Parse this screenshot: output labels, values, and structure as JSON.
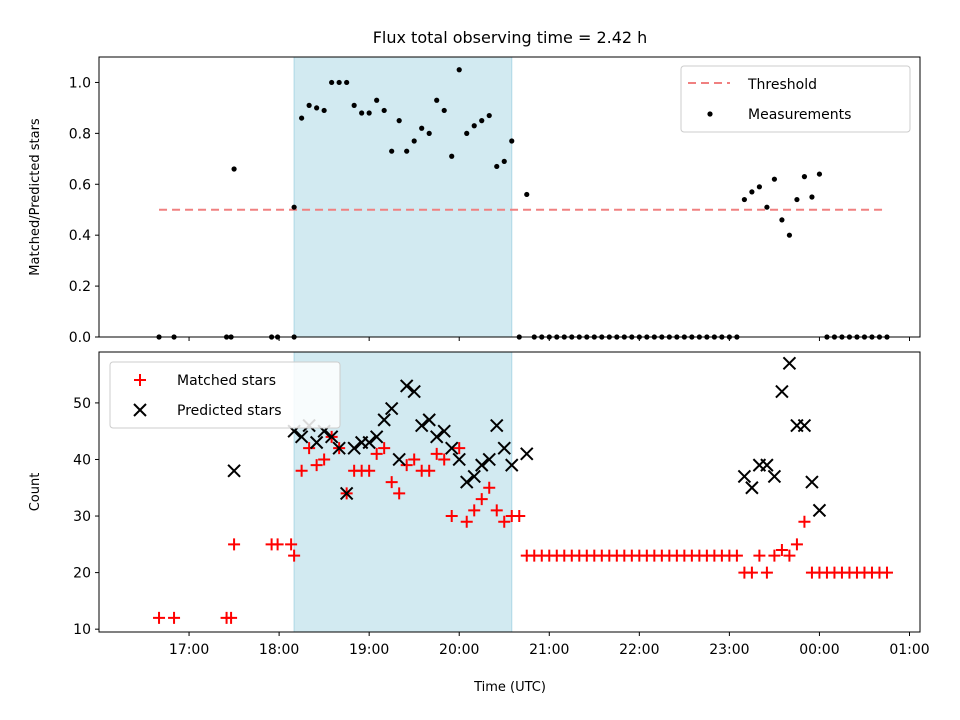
{
  "chart_data": [
    {
      "type": "scatter",
      "title": "Flux total observing time = 2.42 h",
      "ylabel": "Matched/Predicted stars",
      "xlim": [
        "16:00",
        "01:07"
      ],
      "ylim": [
        0,
        1.1
      ],
      "yticks": [
        "0.0",
        "0.2",
        "0.4",
        "0.6",
        "0.8",
        "1.0"
      ],
      "shaded_interval": [
        "18:10",
        "20:35"
      ],
      "shade_color": "#add8e6",
      "threshold": {
        "name": "Threshold",
        "value": 0.5,
        "x_from": "16:40",
        "x_to": "00:45",
        "color": "#f08080"
      },
      "legend": "top-right",
      "series": [
        {
          "name": "Measurements",
          "color": "#000000",
          "marker": "dot",
          "points": [
            [
              "16:40",
              0
            ],
            [
              "16:50",
              0
            ],
            [
              "17:25",
              0
            ],
            [
              "17:28",
              0
            ],
            [
              "17:30",
              0.66
            ],
            [
              "17:55",
              0
            ],
            [
              "17:59",
              0
            ],
            [
              "18:10",
              0
            ],
            [
              "18:10",
              0.51
            ],
            [
              "18:15",
              0.86
            ],
            [
              "18:20",
              0.91
            ],
            [
              "18:25",
              0.9
            ],
            [
              "18:30",
              0.89
            ],
            [
              "18:35",
              1.0
            ],
            [
              "18:40",
              1.0
            ],
            [
              "18:45",
              1.0
            ],
            [
              "18:50",
              0.91
            ],
            [
              "18:55",
              0.88
            ],
            [
              "19:00",
              0.88
            ],
            [
              "19:05",
              0.93
            ],
            [
              "19:10",
              0.89
            ],
            [
              "19:15",
              0.73
            ],
            [
              "19:20",
              0.85
            ],
            [
              "19:25",
              0.73
            ],
            [
              "19:30",
              0.77
            ],
            [
              "19:35",
              0.82
            ],
            [
              "19:40",
              0.8
            ],
            [
              "19:45",
              0.93
            ],
            [
              "19:50",
              0.89
            ],
            [
              "19:55",
              0.71
            ],
            [
              "20:00",
              1.05
            ],
            [
              "20:05",
              0.8
            ],
            [
              "20:10",
              0.83
            ],
            [
              "20:15",
              0.85
            ],
            [
              "20:20",
              0.87
            ],
            [
              "20:25",
              0.67
            ],
            [
              "20:30",
              0.69
            ],
            [
              "20:35",
              0.77
            ],
            [
              "20:40",
              0
            ],
            [
              "20:45",
              0.56
            ],
            [
              "20:50",
              0
            ],
            [
              "20:55",
              0
            ],
            [
              "21:00",
              0
            ],
            [
              "21:05",
              0
            ],
            [
              "21:10",
              0
            ],
            [
              "21:15",
              0
            ],
            [
              "21:20",
              0
            ],
            [
              "21:25",
              0
            ],
            [
              "21:30",
              0
            ],
            [
              "21:35",
              0
            ],
            [
              "21:40",
              0
            ],
            [
              "21:45",
              0
            ],
            [
              "21:50",
              0
            ],
            [
              "21:55",
              0
            ],
            [
              "22:00",
              0
            ],
            [
              "22:05",
              0
            ],
            [
              "22:10",
              0
            ],
            [
              "22:15",
              0
            ],
            [
              "22:20",
              0
            ],
            [
              "22:25",
              0
            ],
            [
              "22:30",
              0
            ],
            [
              "22:35",
              0
            ],
            [
              "22:40",
              0
            ],
            [
              "22:45",
              0
            ],
            [
              "22:50",
              0
            ],
            [
              "22:55",
              0
            ],
            [
              "23:00",
              0
            ],
            [
              "23:05",
              0
            ],
            [
              "23:10",
              0.54
            ],
            [
              "23:15",
              0.57
            ],
            [
              "23:20",
              0.59
            ],
            [
              "23:25",
              0.51
            ],
            [
              "23:30",
              0.62
            ],
            [
              "23:35",
              0.46
            ],
            [
              "23:40",
              0.4
            ],
            [
              "23:45",
              0.54
            ],
            [
              "23:50",
              0.63
            ],
            [
              "23:55",
              0.55
            ],
            [
              "00:00",
              0.64
            ],
            [
              "00:05",
              0
            ],
            [
              "00:10",
              0
            ],
            [
              "00:15",
              0
            ],
            [
              "00:20",
              0
            ],
            [
              "00:25",
              0
            ],
            [
              "00:30",
              0
            ],
            [
              "00:35",
              0
            ],
            [
              "00:40",
              0
            ],
            [
              "00:45",
              0
            ]
          ]
        }
      ]
    },
    {
      "type": "scatter",
      "xlabel": "Time (UTC)",
      "ylabel": "Count",
      "xlim": [
        "16:00",
        "01:07"
      ],
      "ylim": [
        9.5,
        59
      ],
      "yticks": [
        "10",
        "20",
        "30",
        "40",
        "50"
      ],
      "xticks": [
        "17:00",
        "18:00",
        "19:00",
        "20:00",
        "21:00",
        "22:00",
        "23:00",
        "00:00",
        "01:00"
      ],
      "shaded_interval": [
        "18:10",
        "20:35"
      ],
      "shade_color": "#add8e6",
      "legend": "top-left",
      "series": [
        {
          "name": "Matched stars",
          "color": "#ff0000",
          "marker": "plus",
          "points": [
            [
              "16:40",
              12
            ],
            [
              "16:50",
              12
            ],
            [
              "17:25",
              12
            ],
            [
              "17:28",
              12
            ],
            [
              "17:30",
              25
            ],
            [
              "17:55",
              25
            ],
            [
              "17:59",
              25
            ],
            [
              "18:08",
              25
            ],
            [
              "18:10",
              23
            ],
            [
              "18:15",
              38
            ],
            [
              "18:20",
              42
            ],
            [
              "18:25",
              39
            ],
            [
              "18:30",
              40
            ],
            [
              "18:35",
              44
            ],
            [
              "18:40",
              42
            ],
            [
              "18:45",
              34
            ],
            [
              "18:50",
              38
            ],
            [
              "18:55",
              38
            ],
            [
              "19:00",
              38
            ],
            [
              "19:05",
              41
            ],
            [
              "19:10",
              42
            ],
            [
              "19:15",
              36
            ],
            [
              "19:20",
              34
            ],
            [
              "19:25",
              39
            ],
            [
              "19:30",
              40
            ],
            [
              "19:35",
              38
            ],
            [
              "19:40",
              38
            ],
            [
              "19:45",
              41
            ],
            [
              "19:50",
              40
            ],
            [
              "19:55",
              30
            ],
            [
              "20:00",
              42
            ],
            [
              "20:05",
              29
            ],
            [
              "20:10",
              31
            ],
            [
              "20:15",
              33
            ],
            [
              "20:20",
              35
            ],
            [
              "20:25",
              31
            ],
            [
              "20:30",
              29
            ],
            [
              "20:35",
              30
            ],
            [
              "20:40",
              30
            ],
            [
              "20:45",
              23
            ],
            [
              "20:50",
              23
            ],
            [
              "20:55",
              23
            ],
            [
              "21:00",
              23
            ],
            [
              "21:05",
              23
            ],
            [
              "21:10",
              23
            ],
            [
              "21:15",
              23
            ],
            [
              "21:20",
              23
            ],
            [
              "21:25",
              23
            ],
            [
              "21:30",
              23
            ],
            [
              "21:35",
              23
            ],
            [
              "21:40",
              23
            ],
            [
              "21:45",
              23
            ],
            [
              "21:50",
              23
            ],
            [
              "21:55",
              23
            ],
            [
              "22:00",
              23
            ],
            [
              "22:05",
              23
            ],
            [
              "22:10",
              23
            ],
            [
              "22:15",
              23
            ],
            [
              "22:20",
              23
            ],
            [
              "22:25",
              23
            ],
            [
              "22:30",
              23
            ],
            [
              "22:35",
              23
            ],
            [
              "22:40",
              23
            ],
            [
              "22:45",
              23
            ],
            [
              "22:50",
              23
            ],
            [
              "22:55",
              23
            ],
            [
              "23:00",
              23
            ],
            [
              "23:05",
              23
            ],
            [
              "23:10",
              20
            ],
            [
              "23:15",
              20
            ],
            [
              "23:20",
              23
            ],
            [
              "23:25",
              20
            ],
            [
              "23:30",
              23
            ],
            [
              "23:35",
              24
            ],
            [
              "23:40",
              23
            ],
            [
              "23:45",
              25
            ],
            [
              "23:50",
              29
            ],
            [
              "23:55",
              20
            ],
            [
              "00:00",
              20
            ],
            [
              "00:05",
              20
            ],
            [
              "00:10",
              20
            ],
            [
              "00:15",
              20
            ],
            [
              "00:20",
              20
            ],
            [
              "00:25",
              20
            ],
            [
              "00:30",
              20
            ],
            [
              "00:35",
              20
            ],
            [
              "00:40",
              20
            ],
            [
              "00:45",
              20
            ]
          ]
        },
        {
          "name": "Predicted stars",
          "color": "#000000",
          "marker": "x",
          "points": [
            [
              "17:30",
              38
            ],
            [
              "18:10",
              45
            ],
            [
              "18:15",
              44
            ],
            [
              "18:20",
              46
            ],
            [
              "18:25",
              43
            ],
            [
              "18:30",
              45
            ],
            [
              "18:35",
              44
            ],
            [
              "18:40",
              42
            ],
            [
              "18:45",
              34
            ],
            [
              "18:50",
              42
            ],
            [
              "18:55",
              43
            ],
            [
              "19:00",
              43
            ],
            [
              "19:05",
              44
            ],
            [
              "19:10",
              47
            ],
            [
              "19:15",
              49
            ],
            [
              "19:20",
              40
            ],
            [
              "19:25",
              53
            ],
            [
              "19:30",
              52
            ],
            [
              "19:35",
              46
            ],
            [
              "19:40",
              47
            ],
            [
              "19:45",
              44
            ],
            [
              "19:50",
              45
            ],
            [
              "19:55",
              42
            ],
            [
              "20:00",
              40
            ],
            [
              "20:05",
              36
            ],
            [
              "20:10",
              37
            ],
            [
              "20:15",
              39
            ],
            [
              "20:20",
              40
            ],
            [
              "20:25",
              46
            ],
            [
              "20:30",
              42
            ],
            [
              "20:35",
              39
            ],
            [
              "20:45",
              41
            ],
            [
              "23:10",
              37
            ],
            [
              "23:15",
              35
            ],
            [
              "23:20",
              39
            ],
            [
              "23:25",
              39
            ],
            [
              "23:30",
              37
            ],
            [
              "23:35",
              52
            ],
            [
              "23:40",
              57
            ],
            [
              "23:45",
              46
            ],
            [
              "23:50",
              46
            ],
            [
              "23:55",
              36
            ],
            [
              "00:00",
              31
            ]
          ]
        }
      ]
    }
  ]
}
